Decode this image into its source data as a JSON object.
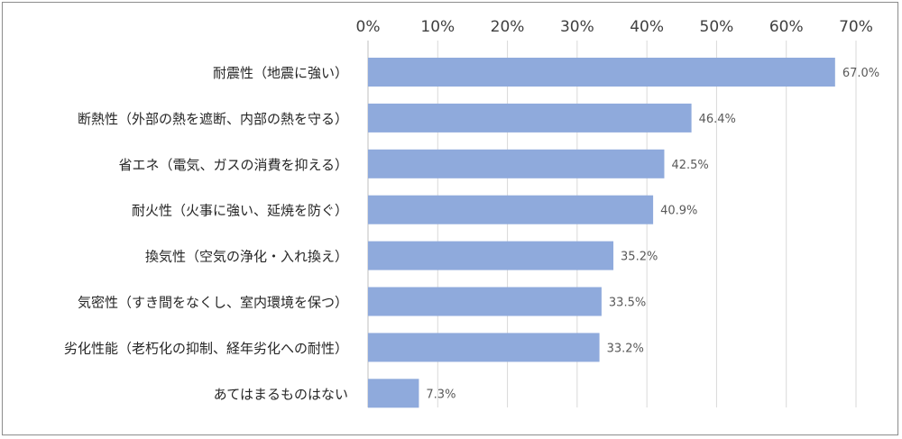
{
  "chart_data": {
    "type": "bar",
    "orientation": "horizontal",
    "title": "",
    "xlabel": "",
    "ylabel": "",
    "xlim": [
      0,
      70
    ],
    "ticks": [
      "0%",
      "10%",
      "20%",
      "30%",
      "40%",
      "50%",
      "60%",
      "70%"
    ],
    "tick_values": [
      0,
      10,
      20,
      30,
      40,
      50,
      60,
      70
    ],
    "grid": true,
    "legend": "none",
    "bar_color": "#8faadc",
    "categories": [
      "耐震性（地震に強い）",
      "断熱性（外部の熱を遮断、内部の熱を守る）",
      "省エネ（電気、ガスの消費を抑える）",
      "耐火性（火事に強い、延焼を防ぐ）",
      "換気性（空気の浄化・入れ換え）",
      "気密性（すき間をなくし、室内環境を保つ）",
      "劣化性能（老朽化の抑制、経年劣化への耐性）",
      "あてはまるものはない"
    ],
    "values": [
      67.0,
      46.4,
      42.5,
      40.9,
      35.2,
      33.5,
      33.2,
      7.3
    ],
    "data_labels": [
      "67.0%",
      "46.4%",
      "42.5%",
      "40.9%",
      "35.2%",
      "33.5%",
      "33.2%",
      "7.3%"
    ]
  }
}
